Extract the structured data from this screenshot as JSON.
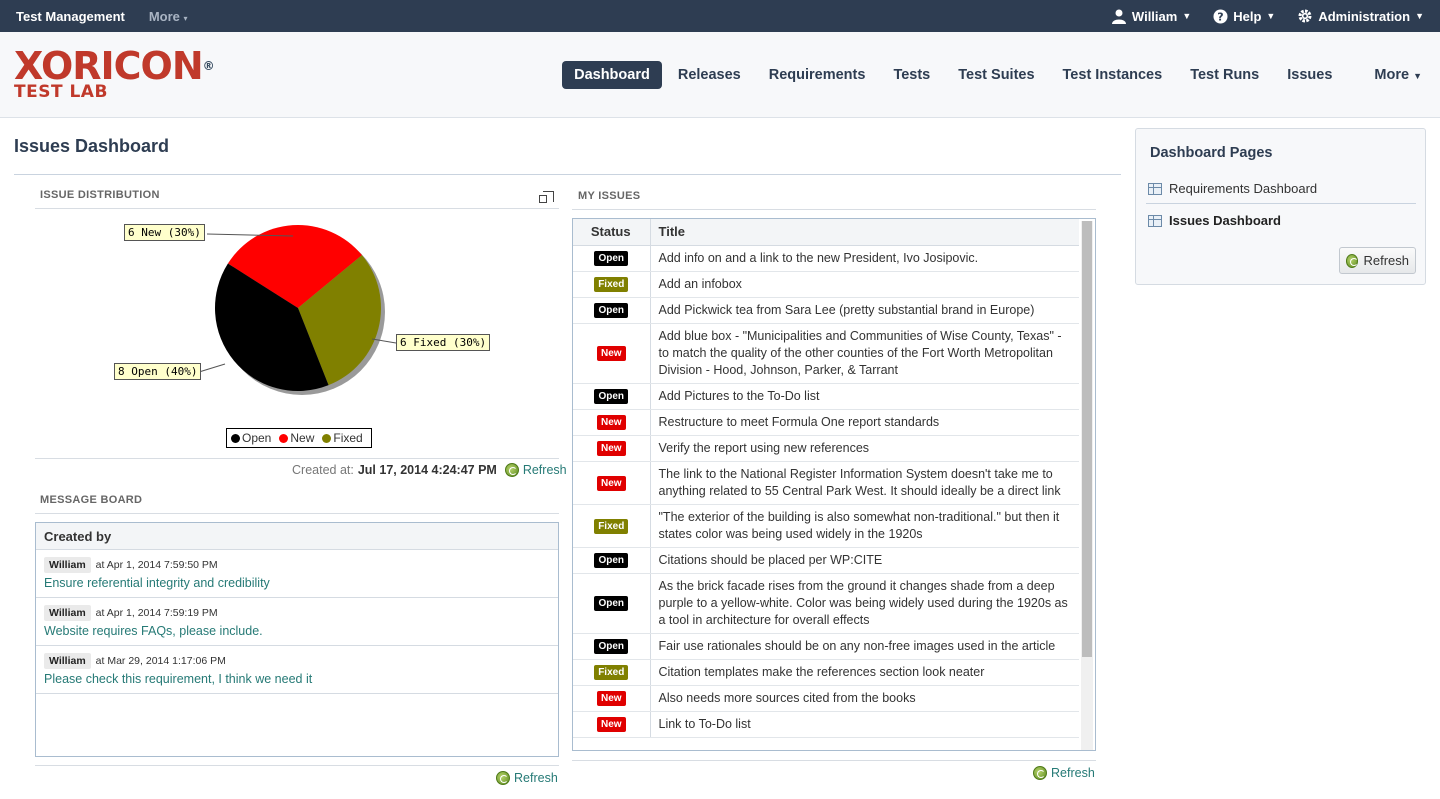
{
  "topbar": {
    "app_name": "Test Management",
    "more_label": "More",
    "user_label": "William",
    "help_label": "Help",
    "admin_label": "Administration"
  },
  "logo": {
    "main": "XORICON",
    "sub": "TEST LAB",
    "reg": "®"
  },
  "nav": {
    "items": [
      "Dashboard",
      "Releases",
      "Requirements",
      "Tests",
      "Test Suites",
      "Test Instances",
      "Test Runs",
      "Issues"
    ],
    "more": "More",
    "active": "Dashboard"
  },
  "page": {
    "title": "Issues Dashboard"
  },
  "distribution": {
    "label": "ISSUE DISTRIBUTION",
    "created_prefix": "Created at:",
    "created_value": "Jul 17, 2014 4:24:47 PM",
    "refresh": "Refresh"
  },
  "chart_data": {
    "type": "pie",
    "categories": [
      "Open",
      "New",
      "Fixed"
    ],
    "values": [
      8,
      6,
      6
    ],
    "labels": [
      "8 Open (40%)",
      "6 New (30%)",
      "6 Fixed (30%)"
    ],
    "colors": [
      "#000000",
      "#ff0000",
      "#808000"
    ],
    "legend": "bottom"
  },
  "message_board": {
    "label": "MESSAGE BOARD",
    "header": "Created by",
    "items": [
      {
        "user": "William",
        "meta": "at Apr 1, 2014 7:59:50 PM",
        "text": "Ensure referential integrity and credibility"
      },
      {
        "user": "William",
        "meta": "at Apr 1, 2014 7:59:19 PM",
        "text": "Website requires FAQs, please include."
      },
      {
        "user": "William",
        "meta": "at Mar 29, 2014 1:17:06 PM",
        "text": "Please check this requirement, I think we need it"
      }
    ],
    "refresh": "Refresh"
  },
  "my_issues": {
    "label": "MY ISSUES",
    "col_status": "Status",
    "col_title": "Title",
    "rows": [
      {
        "status": "Open",
        "title": "Add info on and a link to the new President, Ivo Josipovic."
      },
      {
        "status": "Fixed",
        "title": "Add an infobox"
      },
      {
        "status": "Open",
        "title": "Add Pickwick tea from Sara Lee (pretty substantial brand in Europe)"
      },
      {
        "status": "New",
        "title": "Add blue box - \"Municipalities and Communities of Wise County, Texas\" - to match the quality of the other counties of the Fort Worth Metropolitan Division - Hood, Johnson, Parker, & Tarrant"
      },
      {
        "status": "Open",
        "title": "Add Pictures to the To-Do list"
      },
      {
        "status": "New",
        "title": "Restructure to meet Formula One report standards"
      },
      {
        "status": "New",
        "title": "Verify the report using new references"
      },
      {
        "status": "New",
        "title": "The link to the National Register Information System doesn't take me to anything related to 55 Central Park West. It should ideally be a direct link"
      },
      {
        "status": "Fixed",
        "title": "\"The exterior of the building is also somewhat non-traditional.\" but then it states color was being used widely in the 1920s"
      },
      {
        "status": "Open",
        "title": "Citations should be placed per WP:CITE"
      },
      {
        "status": "Open",
        "title": "As the brick facade rises from the ground it changes shade from a deep purple to a yellow-white. Color was being widely used during the 1920s as a tool in architecture for overall effects"
      },
      {
        "status": "Open",
        "title": "Fair use rationales should be on any non-free images used in the article"
      },
      {
        "status": "Fixed",
        "title": "Citation templates make the references section look neater"
      },
      {
        "status": "New",
        "title": "Also needs more sources cited from the books"
      },
      {
        "status": "New",
        "title": "Link to To-Do list"
      }
    ],
    "refresh": "Refresh"
  },
  "side": {
    "title": "Dashboard Pages",
    "links": [
      "Requirements Dashboard",
      "Issues Dashboard"
    ],
    "active": "Issues Dashboard",
    "refresh": "Refresh"
  }
}
